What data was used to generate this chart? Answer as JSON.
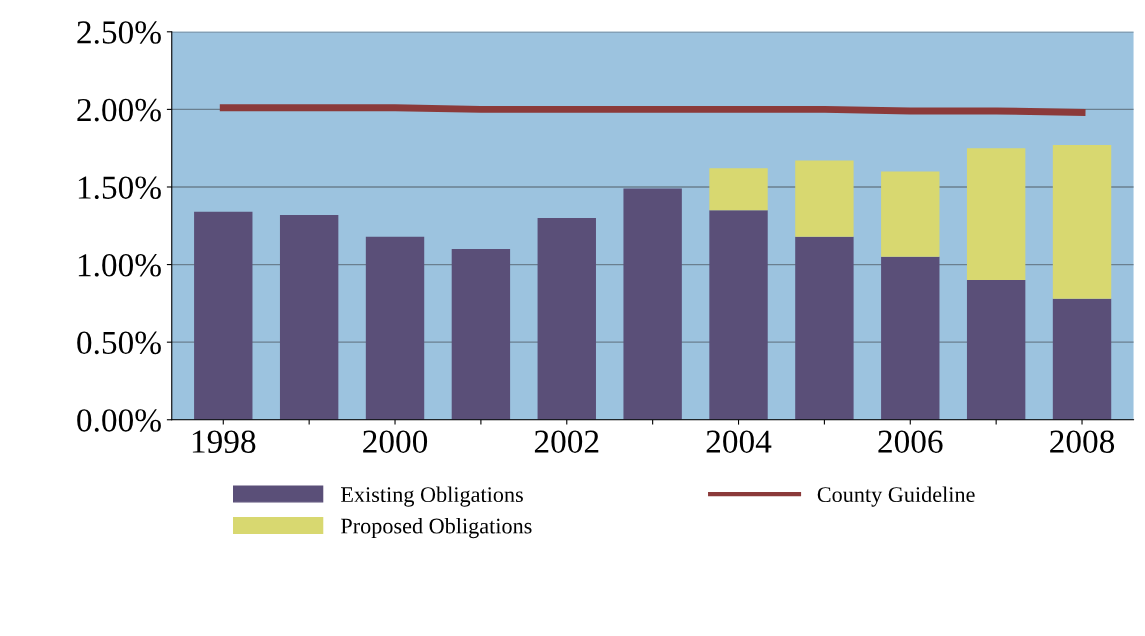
{
  "chart_data": {
    "type": "bar",
    "stacked": true,
    "categories": [
      "1998",
      null,
      "2000",
      null,
      "2002",
      null,
      "2004",
      null,
      "2006",
      null,
      "2008"
    ],
    "series": [
      {
        "name": "Existing Obligations",
        "color": "#5a4f78",
        "values": [
          1.34,
          1.32,
          1.18,
          1.1,
          1.3,
          1.49,
          1.35,
          1.18,
          1.05,
          0.9,
          0.78
        ]
      },
      {
        "name": "Proposed Obligations",
        "color": "#d8d870",
        "values": [
          null,
          null,
          null,
          null,
          null,
          null,
          0.27,
          0.49,
          0.55,
          0.85,
          0.99
        ]
      },
      {
        "name": "County Guideline",
        "type": "line",
        "color": "#8b3a3a",
        "values": [
          2.01,
          2.01,
          2.01,
          2.0,
          2.0,
          2.0,
          2.0,
          2.0,
          1.99,
          1.99,
          1.98
        ]
      }
    ],
    "ylim": [
      0,
      2.5
    ],
    "yticks": [
      {
        "value": 0,
        "label": "0.00%"
      },
      {
        "value": 0.5,
        "label": "0.50%"
      },
      {
        "value": 1.0,
        "label": "1.00%"
      },
      {
        "value": 1.5,
        "label": "1.50%"
      },
      {
        "value": 2.0,
        "label": "2.00%"
      },
      {
        "value": 2.5,
        "label": "2.50%"
      }
    ],
    "grid": "y",
    "legend": "bottom",
    "marker": "none",
    "line_style": "solid"
  }
}
